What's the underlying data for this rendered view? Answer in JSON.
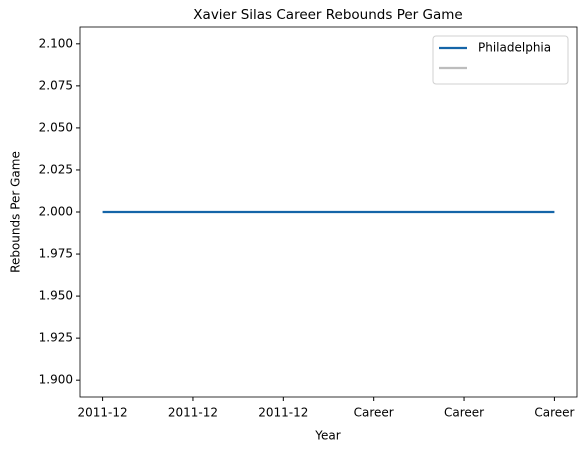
{
  "chart_data": {
    "type": "line",
    "title": "Xavier Silas Career Rebounds Per Game",
    "xlabel": "Year",
    "ylabel": "Rebounds Per Game",
    "categories": [
      "2011-12",
      "2011-12",
      "2011-12",
      "Career",
      "Career",
      "Career"
    ],
    "series": [
      {
        "name": "Philadelphia",
        "color": "#1565a8",
        "values": [
          2,
          2,
          2,
          2,
          2,
          2
        ]
      },
      {
        "color": "#bdbdbd",
        "values": [
          null,
          null,
          null,
          null,
          null,
          null
        ]
      }
    ],
    "ylim": [
      1.89,
      2.11
    ],
    "yticks": [
      {
        "value": 1.9,
        "label": "1.900"
      },
      {
        "value": 1.925,
        "label": "1.925"
      },
      {
        "value": 1.95,
        "label": "1.950"
      },
      {
        "value": 1.975,
        "label": "1.975"
      },
      {
        "value": 2.0,
        "label": "2.000"
      },
      {
        "value": 2.025,
        "label": "2.025"
      },
      {
        "value": 2.05,
        "label": "2.050"
      },
      {
        "value": 2.075,
        "label": "2.075"
      },
      {
        "value": 2.1,
        "label": "2.100"
      }
    ],
    "legend": "upper right"
  }
}
